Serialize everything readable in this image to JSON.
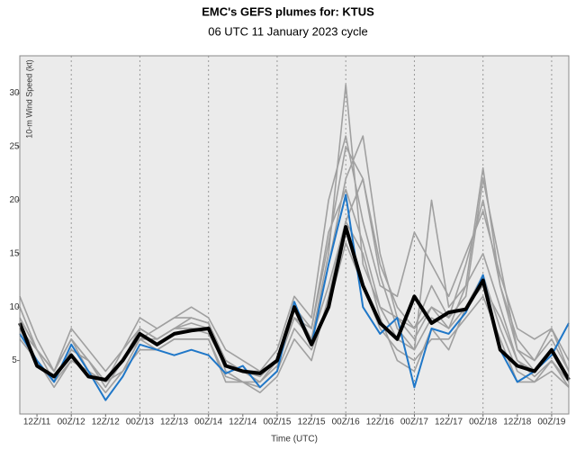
{
  "chart_data": {
    "type": "line",
    "title": "EMC's GEFS plumes for: KTUS",
    "subtitle": "06 UTC 11 January 2023 cycle",
    "y_label": "10-m Wind Speed (kt)",
    "x_label": "Time (UTC)",
    "x": [
      0,
      6,
      12,
      18,
      24,
      30,
      36,
      42,
      48,
      54,
      60,
      66,
      72,
      78,
      84,
      90,
      96,
      102,
      108,
      114,
      120,
      126,
      132,
      138,
      144,
      150,
      156,
      162,
      168,
      174,
      180,
      186,
      192
    ],
    "xlim": [
      0,
      192
    ],
    "xticks": [
      {
        "value": 6,
        "label": "12Z/11"
      },
      {
        "value": 18,
        "label": "00Z/12"
      },
      {
        "value": 30,
        "label": "12Z/12"
      },
      {
        "value": 42,
        "label": "00Z/13"
      },
      {
        "value": 54,
        "label": "12Z/13"
      },
      {
        "value": 66,
        "label": "00Z/14"
      },
      {
        "value": 78,
        "label": "12Z/14"
      },
      {
        "value": 90,
        "label": "00Z/15"
      },
      {
        "value": 102,
        "label": "12Z/15"
      },
      {
        "value": 114,
        "label": "00Z/16"
      },
      {
        "value": 126,
        "label": "12Z/16"
      },
      {
        "value": 138,
        "label": "00Z/17"
      },
      {
        "value": 150,
        "label": "12Z/17"
      },
      {
        "value": 162,
        "label": "00Z/18"
      },
      {
        "value": 174,
        "label": "12Z/18"
      },
      {
        "value": 186,
        "label": "00Z/19"
      }
    ],
    "ylim": [
      0,
      33.5
    ],
    "yticks": [
      5,
      10,
      15,
      20,
      25,
      30
    ],
    "series": [
      {
        "color": "#a0a0a0",
        "values": [
          9,
          6,
          4,
          7,
          5,
          3,
          6,
          8,
          7,
          8,
          8.5,
          8,
          5,
          4,
          3.5,
          5,
          10,
          7,
          15,
          30.8,
          14,
          10,
          9,
          7,
          10,
          8,
          12,
          15,
          10,
          5,
          4,
          6,
          3.5
        ]
      },
      {
        "color": "#a0a0a0",
        "values": [
          8,
          5,
          3,
          6,
          5,
          2.5,
          5,
          7,
          8,
          9,
          9,
          8.5,
          4,
          3,
          3,
          4.5,
          9,
          8,
          16,
          25,
          22,
          14,
          10,
          8,
          12,
          9,
          14,
          20,
          12,
          6,
          5,
          7,
          4
        ]
      },
      {
        "color": "#a0a0a0",
        "values": [
          7,
          5,
          2.5,
          5,
          4,
          3,
          4,
          6,
          6,
          7,
          7,
          7,
          3,
          3,
          2.5,
          4,
          8,
          6,
          10,
          16,
          12,
          8,
          6,
          5,
          7,
          7,
          9,
          11,
          7,
          3,
          3,
          5,
          2.5
        ]
      },
      {
        "color": "#a0a0a0",
        "values": [
          11,
          7,
          4,
          8,
          6,
          4,
          6,
          9,
          8,
          9,
          10,
          9,
          6,
          5,
          4,
          6,
          11,
          9,
          20,
          26,
          18,
          12,
          11,
          17,
          14,
          11,
          15,
          19,
          13,
          8,
          7,
          8,
          5
        ]
      },
      {
        "color": "#a0a0a0",
        "values": [
          8,
          6,
          3,
          6,
          5,
          3,
          5,
          8,
          7,
          8,
          8,
          8,
          5,
          4,
          4,
          5,
          9,
          7,
          14,
          22,
          26,
          15,
          9,
          8,
          10,
          9,
          11,
          22,
          14,
          6,
          4,
          6,
          3
        ]
      },
      {
        "color": "#a0a0a0",
        "values": [
          9,
          6,
          4,
          7,
          4,
          2,
          4,
          7,
          6,
          7,
          7,
          7,
          3.5,
          3,
          2,
          3.5,
          7,
          5,
          11,
          18,
          15,
          9,
          5,
          4,
          8,
          6,
          10,
          13,
          8,
          4,
          3,
          4,
          2.5
        ]
      },
      {
        "color": "#a0a0a0",
        "values": [
          8,
          5,
          3,
          5,
          4,
          3,
          5,
          7,
          7,
          8,
          8,
          7.5,
          4.5,
          4,
          3,
          5,
          10,
          8,
          17,
          21,
          16,
          10,
          7,
          6,
          9,
          8,
          10,
          12,
          9,
          5,
          3.5,
          5,
          3
        ]
      },
      {
        "color": "#a0a0a0",
        "values": [
          10,
          6,
          4,
          7,
          5,
          3,
          5,
          8,
          7,
          8,
          9,
          8.5,
          5,
          4,
          4,
          5,
          9,
          7,
          12,
          18,
          22,
          13,
          8,
          6,
          20,
          10,
          12,
          23,
          12,
          7,
          5,
          8,
          4
        ]
      },
      {
        "color": "#1f77c8",
        "values": [
          7.5,
          5,
          3,
          6.5,
          4,
          1.3,
          3.5,
          6.5,
          6,
          5.5,
          6,
          5.5,
          3.8,
          4.5,
          2.5,
          4,
          10.5,
          6.5,
          14,
          20.5,
          10,
          7.5,
          9,
          2.5,
          8,
          7.5,
          9.5,
          13,
          6,
          3,
          4,
          5.5,
          8.5
        ]
      },
      {
        "color": "#000000",
        "values": [
          8.5,
          4.5,
          3.5,
          5.5,
          3.5,
          3.2,
          5,
          7.5,
          6.5,
          7.5,
          7.8,
          8,
          4.5,
          4,
          3.8,
          5,
          10,
          6.5,
          10,
          17.5,
          12,
          8.5,
          7,
          11,
          8.5,
          9.5,
          9.8,
          12.5,
          6,
          4.5,
          4,
          6,
          3.2
        ]
      }
    ]
  }
}
